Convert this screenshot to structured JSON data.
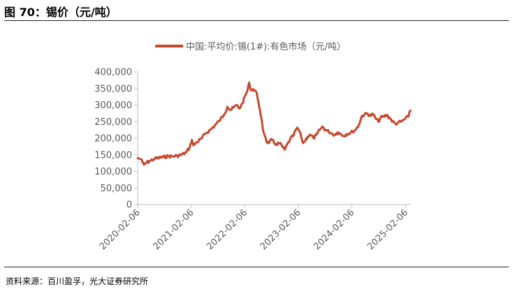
{
  "figure_title": "图 70：锡价（元/吨）",
  "source": "资料来源：百川盈孚，光大证券研究所",
  "colors": {
    "series": "#C8472D",
    "axis": "#BFBFBF",
    "text": "#595959"
  },
  "chart_data": {
    "type": "line",
    "title": "",
    "xlabel": "",
    "ylabel": "",
    "ylim": [
      0,
      400000
    ],
    "yticks": [
      0,
      50000,
      100000,
      150000,
      200000,
      250000,
      300000,
      350000,
      400000
    ],
    "ytick_labels": [
      "0",
      "50,000",
      "100,000",
      "150,000",
      "200,000",
      "250,000",
      "300,000",
      "350,000",
      "400,000"
    ],
    "xlim": [
      "2020-02-06",
      "2025-03-15"
    ],
    "xticks": [
      "2020-02-06",
      "2021-02-06",
      "2022-02-06",
      "2023-02-06",
      "2024-02-06",
      "2025-02-06"
    ],
    "legend_position": "top",
    "grid": false,
    "series": [
      {
        "name": "中国:平均价:锡(1#):有色市场（元/吨）",
        "points": [
          [
            "2020-02-06",
            140000
          ],
          [
            "2020-02-25",
            137000
          ],
          [
            "2020-03-10",
            128000
          ],
          [
            "2020-03-20",
            120000
          ],
          [
            "2020-04-01",
            125000
          ],
          [
            "2020-05-01",
            132000
          ],
          [
            "2020-06-01",
            138000
          ],
          [
            "2020-07-01",
            141000
          ],
          [
            "2020-08-01",
            143000
          ],
          [
            "2020-09-01",
            146000
          ],
          [
            "2020-10-01",
            145000
          ],
          [
            "2020-11-01",
            147000
          ],
          [
            "2020-12-01",
            150000
          ],
          [
            "2021-01-01",
            157000
          ],
          [
            "2021-01-25",
            172000
          ],
          [
            "2021-02-10",
            195000
          ],
          [
            "2021-02-20",
            178000
          ],
          [
            "2021-03-15",
            188000
          ],
          [
            "2021-04-15",
            198000
          ],
          [
            "2021-05-15",
            215000
          ],
          [
            "2021-06-15",
            225000
          ],
          [
            "2021-07-15",
            238000
          ],
          [
            "2021-08-15",
            252000
          ],
          [
            "2021-09-15",
            270000
          ],
          [
            "2021-10-10",
            295000
          ],
          [
            "2021-11-01",
            285000
          ],
          [
            "2021-11-20",
            292000
          ],
          [
            "2021-12-10",
            300000
          ],
          [
            "2022-01-01",
            290000
          ],
          [
            "2022-01-20",
            305000
          ],
          [
            "2022-02-10",
            330000
          ],
          [
            "2022-02-25",
            345000
          ],
          [
            "2022-03-08",
            368000
          ],
          [
            "2022-03-20",
            345000
          ],
          [
            "2022-04-05",
            348000
          ],
          [
            "2022-04-25",
            340000
          ],
          [
            "2022-05-10",
            310000
          ],
          [
            "2022-05-25",
            270000
          ],
          [
            "2022-06-10",
            225000
          ],
          [
            "2022-06-25",
            205000
          ],
          [
            "2022-07-10",
            185000
          ],
          [
            "2022-07-25",
            190000
          ],
          [
            "2022-08-10",
            195000
          ],
          [
            "2022-08-25",
            185000
          ],
          [
            "2022-09-10",
            182000
          ],
          [
            "2022-10-01",
            185000
          ],
          [
            "2022-10-20",
            175000
          ],
          [
            "2022-11-05",
            165000
          ],
          [
            "2022-11-20",
            180000
          ],
          [
            "2022-12-10",
            195000
          ],
          [
            "2023-01-05",
            210000
          ],
          [
            "2023-01-25",
            230000
          ],
          [
            "2023-02-10",
            225000
          ],
          [
            "2023-02-25",
            205000
          ],
          [
            "2023-03-10",
            185000
          ],
          [
            "2023-03-20",
            190000
          ],
          [
            "2023-04-10",
            205000
          ],
          [
            "2023-05-01",
            210000
          ],
          [
            "2023-05-20",
            200000
          ],
          [
            "2023-06-10",
            210000
          ],
          [
            "2023-07-01",
            225000
          ],
          [
            "2023-07-20",
            235000
          ],
          [
            "2023-08-10",
            225000
          ],
          [
            "2023-09-01",
            220000
          ],
          [
            "2023-09-20",
            215000
          ],
          [
            "2023-10-10",
            210000
          ],
          [
            "2023-11-01",
            218000
          ],
          [
            "2023-11-20",
            213000
          ],
          [
            "2023-12-10",
            207000
          ],
          [
            "2024-01-05",
            213000
          ],
          [
            "2024-01-25",
            215000
          ],
          [
            "2024-02-10",
            220000
          ],
          [
            "2024-03-01",
            225000
          ],
          [
            "2024-03-25",
            240000
          ],
          [
            "2024-04-15",
            268000
          ],
          [
            "2024-05-01",
            270000
          ],
          [
            "2024-05-20",
            275000
          ],
          [
            "2024-06-10",
            268000
          ],
          [
            "2024-07-01",
            272000
          ],
          [
            "2024-07-20",
            258000
          ],
          [
            "2024-08-05",
            250000
          ],
          [
            "2024-08-20",
            262000
          ],
          [
            "2024-09-10",
            265000
          ],
          [
            "2024-10-01",
            270000
          ],
          [
            "2024-10-20",
            262000
          ],
          [
            "2024-11-10",
            250000
          ],
          [
            "2024-12-01",
            243000
          ],
          [
            "2024-12-20",
            248000
          ],
          [
            "2025-01-10",
            250000
          ],
          [
            "2025-02-01",
            258000
          ],
          [
            "2025-02-25",
            265000
          ],
          [
            "2025-03-05",
            280000
          ],
          [
            "2025-03-12",
            283000
          ]
        ]
      }
    ]
  }
}
